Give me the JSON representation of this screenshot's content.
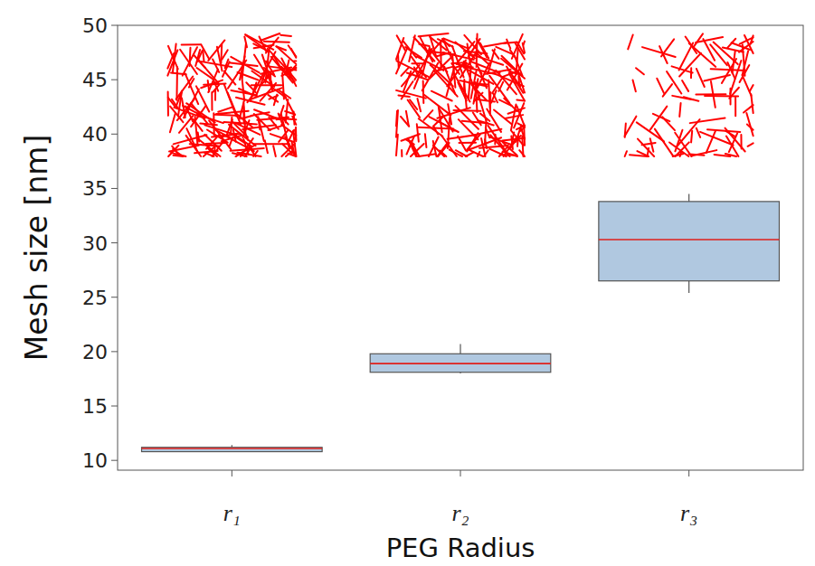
{
  "chart_data": {
    "type": "box",
    "x_label": "PEG Radius",
    "y_label": "Mesh size [nm]",
    "categories": [
      "r₁",
      "r₂",
      "r₃"
    ],
    "boxes": [
      {
        "whislo": 10.8,
        "q1": 10.8,
        "med": 11.1,
        "q3": 11.2,
        "whishi": 11.4
      },
      {
        "whislo": 18.0,
        "q1": 18.1,
        "med": 18.9,
        "q3": 19.8,
        "whishi": 20.7
      },
      {
        "whislo": 25.4,
        "q1": 26.5,
        "med": 30.3,
        "q3": 33.8,
        "whishi": 34.5
      }
    ],
    "color": "#b0c8e0",
    "ylim": [
      9.1,
      50
    ],
    "yticks": [
      10,
      15,
      20,
      25,
      30,
      35,
      40,
      45,
      50
    ]
  }
}
